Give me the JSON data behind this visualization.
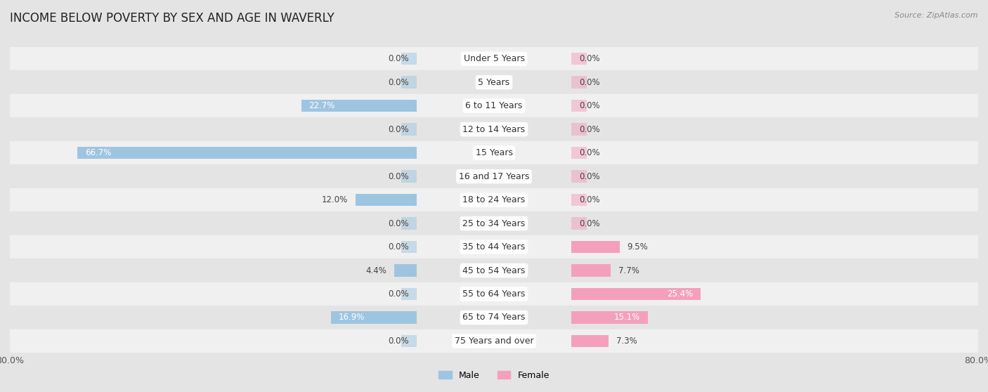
{
  "title": "INCOME BELOW POVERTY BY SEX AND AGE IN WAVERLY",
  "source": "Source: ZipAtlas.com",
  "categories": [
    "Under 5 Years",
    "5 Years",
    "6 to 11 Years",
    "12 to 14 Years",
    "15 Years",
    "16 and 17 Years",
    "18 to 24 Years",
    "25 to 34 Years",
    "35 to 44 Years",
    "45 to 54 Years",
    "55 to 64 Years",
    "65 to 74 Years",
    "75 Years and over"
  ],
  "male": [
    0.0,
    0.0,
    22.7,
    0.0,
    66.7,
    0.0,
    12.0,
    0.0,
    0.0,
    4.4,
    0.0,
    16.9,
    0.0
  ],
  "female": [
    0.0,
    0.0,
    0.0,
    0.0,
    0.0,
    0.0,
    0.0,
    0.0,
    9.5,
    7.7,
    25.4,
    15.1,
    7.3
  ],
  "male_color": "#9ec5e0",
  "female_color": "#f4a0bc",
  "bg_color": "#e4e4e4",
  "row_bg_even": "#f0f0f0",
  "row_bg_odd": "#e4e4e4",
  "axis_limit": 80.0,
  "bar_height": 0.52,
  "title_fontsize": 12,
  "label_fontsize": 8.5,
  "cat_fontsize": 9,
  "tick_fontsize": 9,
  "source_fontsize": 8
}
